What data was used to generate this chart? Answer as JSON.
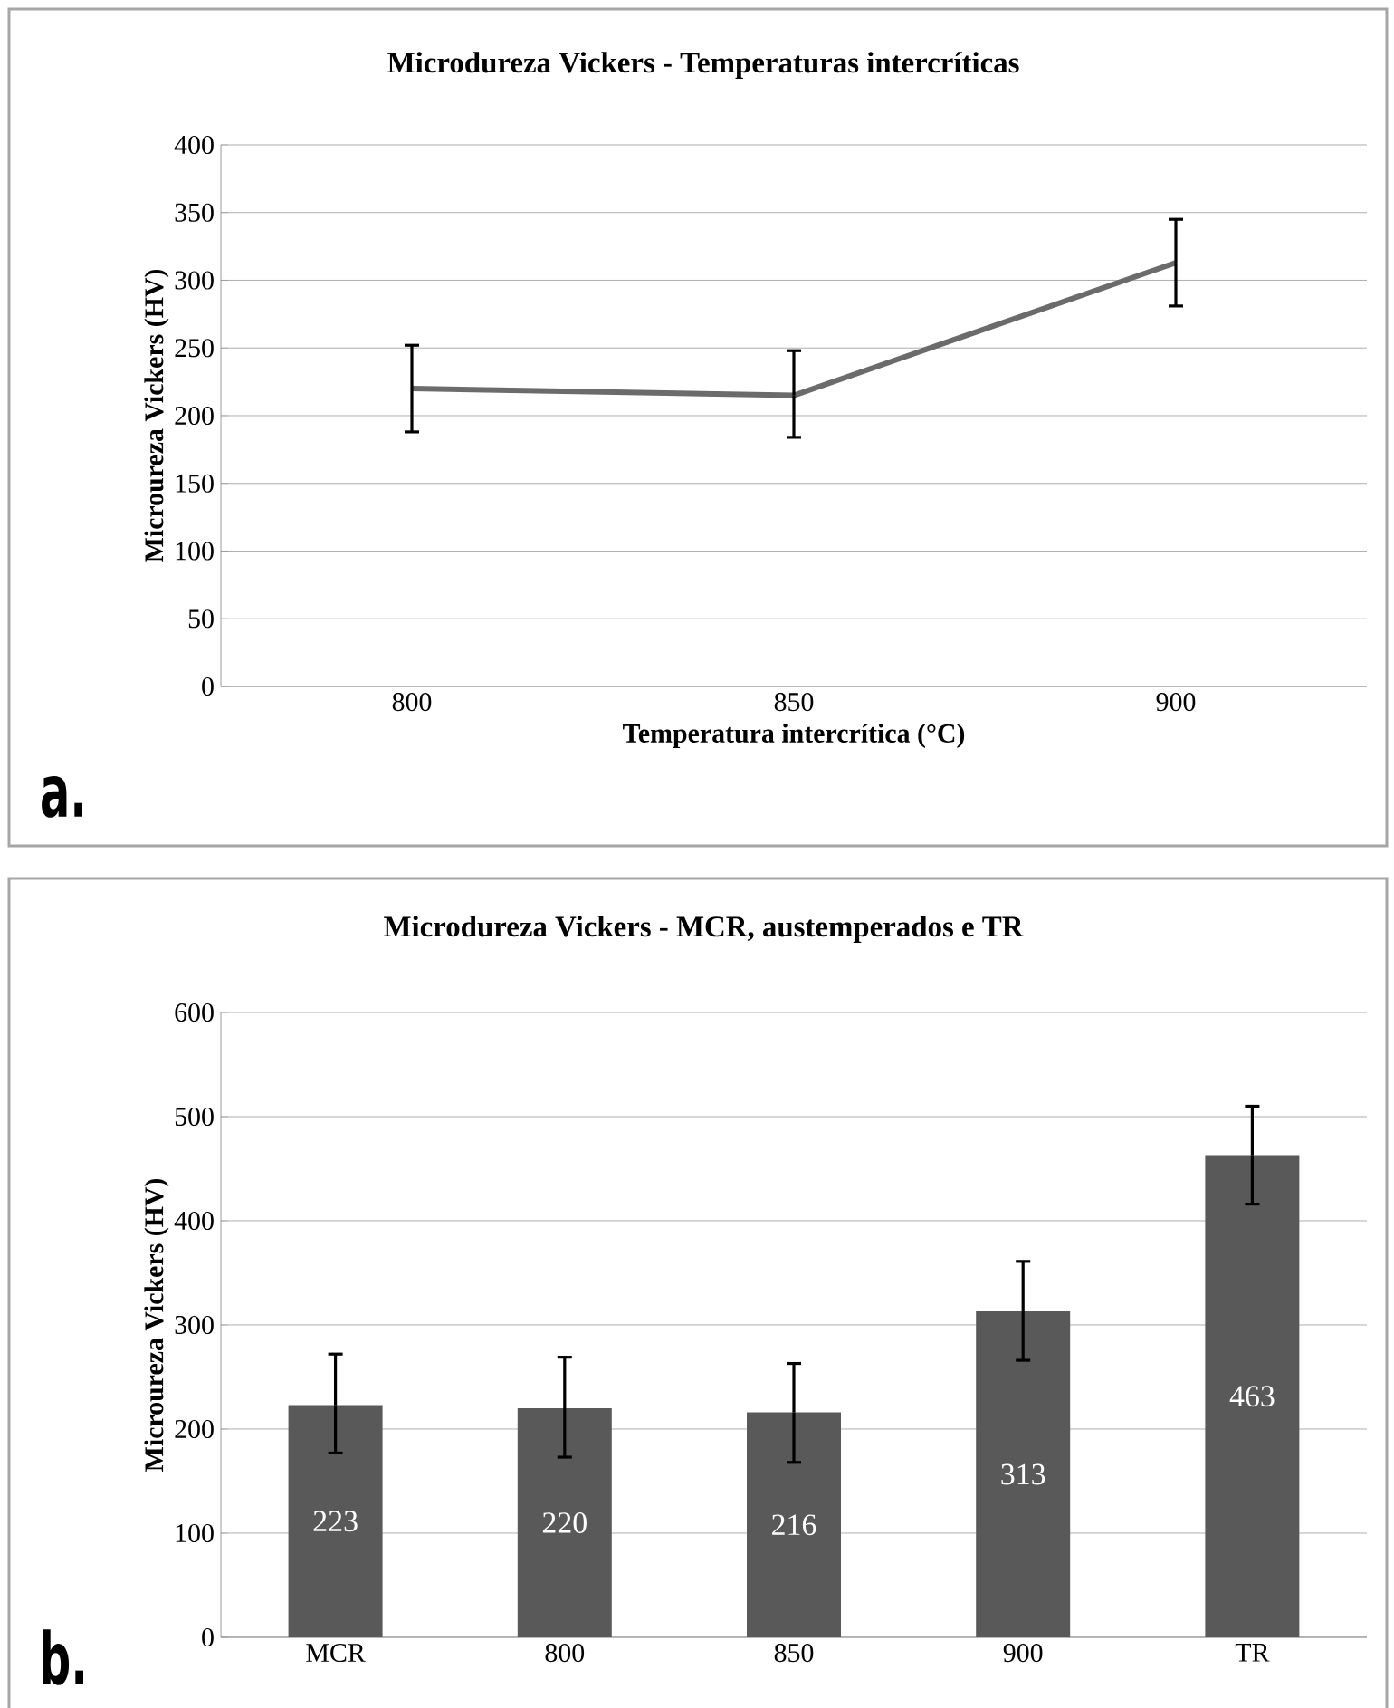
{
  "chart_data": [
    {
      "type": "line",
      "title": "Microdureza Vickers - Temperaturas intercríticas",
      "xlabel": "Temperatura intercrítica (°C)",
      "ylabel": "Microureza Vickers (HV)",
      "categories": [
        "800",
        "850",
        "900"
      ],
      "series": [
        {
          "color": "#6b6b6b",
          "values": [
            220,
            215,
            313
          ],
          "errors": [
            [
              188,
              252
            ],
            [
              184,
              248
            ],
            [
              281,
              345
            ]
          ]
        }
      ],
      "ylim": [
        0,
        400
      ],
      "yticks": [
        0,
        50,
        100,
        150,
        200,
        250,
        300,
        350,
        400
      ],
      "grid": "y",
      "annotations": [
        "a."
      ]
    },
    {
      "type": "bar",
      "title": "Microdureza Vickers - MCR, austemperados e TR",
      "ylabel": "Microureza Vickers (HV)",
      "categories": [
        "MCR",
        "800",
        "850",
        "900",
        "TR"
      ],
      "series": [
        {
          "color": "#595959",
          "values": [
            223,
            220,
            216,
            313,
            463
          ],
          "errors": [
            [
              177,
              272
            ],
            [
              173,
              269
            ],
            [
              168,
              263
            ],
            [
              266,
              361
            ],
            [
              416,
              510
            ]
          ]
        }
      ],
      "data_labels": true,
      "ylim": [
        0,
        600
      ],
      "yticks": [
        0,
        100,
        200,
        300,
        400,
        500,
        600
      ],
      "grid": "y",
      "annotations": [
        "b."
      ]
    }
  ]
}
